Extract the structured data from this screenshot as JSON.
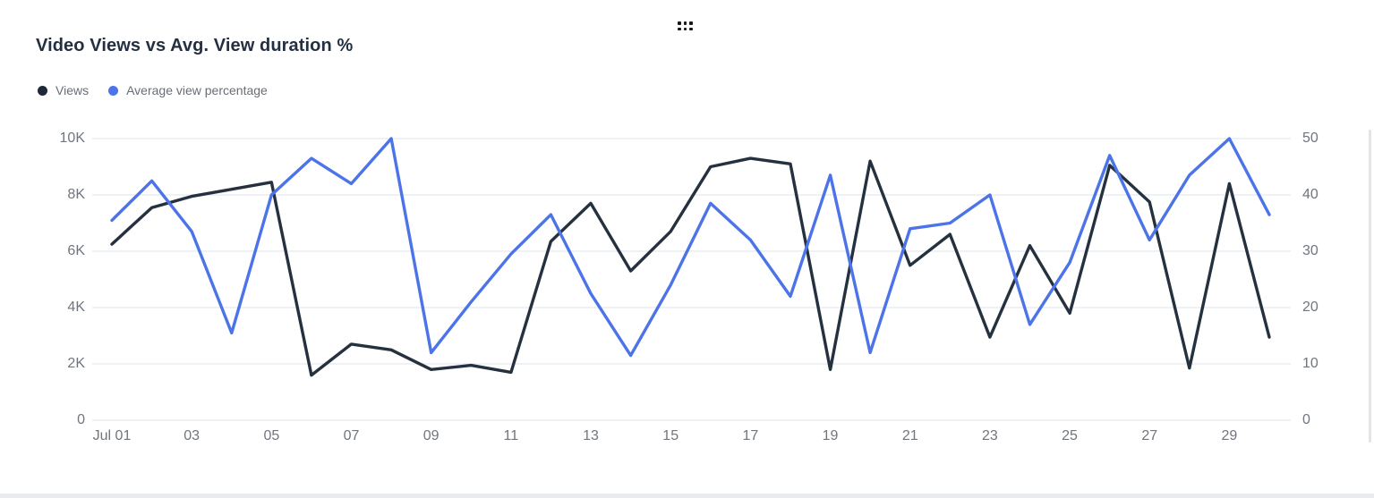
{
  "header": {
    "title": "Video Views vs Avg. View duration %",
    "drag_handle_icon": "grid-of-six-dots"
  },
  "legend": [
    {
      "label": "Views",
      "color": "#1e2838"
    },
    {
      "label": "Average view percentage",
      "color": "#4c74e8"
    }
  ],
  "colors": {
    "views_line": "#263140",
    "avg_pct_line": "#4c74e8",
    "gridline": "#e9edf3",
    "axis_text": "#70757e",
    "title_text": "#243041"
  },
  "chart_data": {
    "type": "line",
    "title": "Video Views vs Avg. View duration %",
    "grid": "horizontal-only",
    "legend_position": "top-left",
    "x": [
      "Jul 01",
      "Jul 02",
      "Jul 03",
      "Jul 04",
      "Jul 05",
      "Jul 06",
      "Jul 07",
      "Jul 08",
      "Jul 09",
      "Jul 10",
      "Jul 11",
      "Jul 12",
      "Jul 13",
      "Jul 14",
      "Jul 15",
      "Jul 16",
      "Jul 17",
      "Jul 18",
      "Jul 19",
      "Jul 20",
      "Jul 21",
      "Jul 22",
      "Jul 23",
      "Jul 24",
      "Jul 25",
      "Jul 26",
      "Jul 27",
      "Jul 28",
      "Jul 29",
      "Jul 30"
    ],
    "x_ticks": [
      {
        "label": "Jul 01",
        "day": 1
      },
      {
        "label": "03",
        "day": 3
      },
      {
        "label": "05",
        "day": 5
      },
      {
        "label": "07",
        "day": 7
      },
      {
        "label": "09",
        "day": 9
      },
      {
        "label": "11",
        "day": 11
      },
      {
        "label": "13",
        "day": 13
      },
      {
        "label": "15",
        "day": 15
      },
      {
        "label": "17",
        "day": 17
      },
      {
        "label": "19",
        "day": 19
      },
      {
        "label": "21",
        "day": 21
      },
      {
        "label": "23",
        "day": 23
      },
      {
        "label": "25",
        "day": 25
      },
      {
        "label": "27",
        "day": 27
      },
      {
        "label": "29",
        "day": 29
      }
    ],
    "left_axis": {
      "min": 0,
      "max": 10000,
      "ticks": [
        {
          "label": "10K",
          "value": 10000
        },
        {
          "label": "8K",
          "value": 8000
        },
        {
          "label": "6K",
          "value": 6000
        },
        {
          "label": "4K",
          "value": 4000
        },
        {
          "label": "2K",
          "value": 2000
        },
        {
          "label": "0",
          "value": 0
        }
      ]
    },
    "right_axis": {
      "min": 0,
      "max": 50,
      "ticks": [
        {
          "label": "50",
          "value": 50
        },
        {
          "label": "40",
          "value": 40
        },
        {
          "label": "30",
          "value": 30
        },
        {
          "label": "20",
          "value": 20
        },
        {
          "label": "10",
          "value": 10
        },
        {
          "label": "0",
          "value": 0
        }
      ]
    },
    "series": [
      {
        "name": "Views",
        "axis": "left",
        "color": "#263140",
        "values": [
          6250,
          7550,
          7950,
          8200,
          8450,
          1600,
          2700,
          2500,
          1800,
          1950,
          1700,
          6350,
          7700,
          5300,
          6700,
          9000,
          9300,
          9100,
          1800,
          9200,
          5500,
          6600,
          2950,
          6200,
          3800,
          9050,
          7750,
          1850,
          8400,
          2950
        ]
      },
      {
        "name": "Average view percentage",
        "axis": "right",
        "color": "#4c74e8",
        "values": [
          35.5,
          42.5,
          33.5,
          15.5,
          40,
          46.5,
          42,
          50,
          12,
          21,
          29.5,
          36.5,
          22.5,
          11.5,
          24,
          38.5,
          32,
          22,
          43.5,
          12,
          34,
          35,
          40,
          17,
          28,
          47,
          32,
          43.5,
          50,
          36.5
        ]
      }
    ]
  }
}
